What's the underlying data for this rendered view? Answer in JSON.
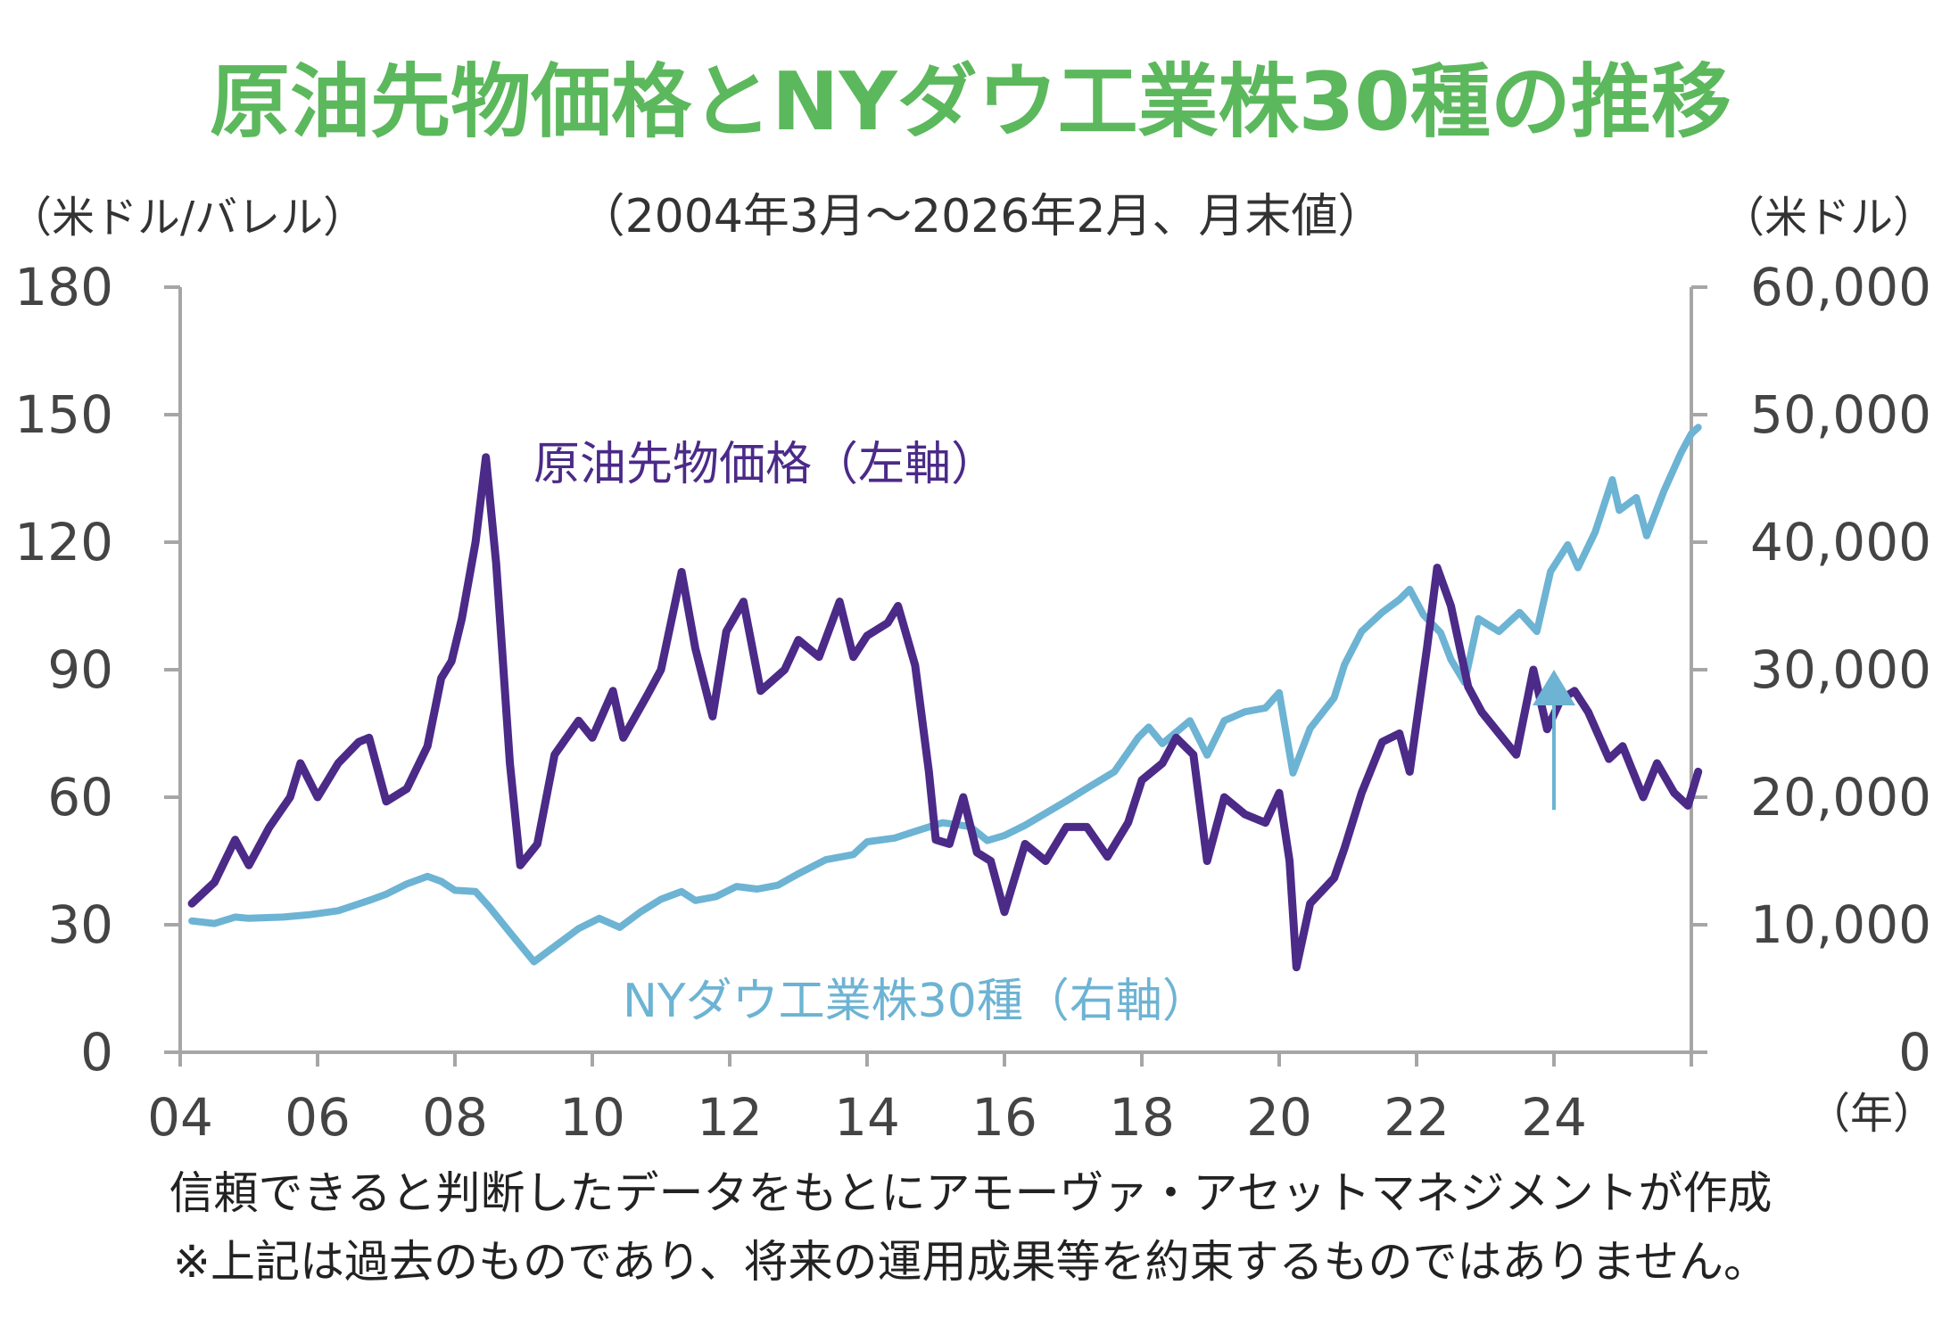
{
  "header": {
    "title": "原油先物価格とNYダウ工業株30種の推移",
    "subtitle": "（2004年3月～2026年2月、月末値）",
    "left_unit": "（米ドル/バレル）",
    "right_unit": "（米ドル）",
    "x_unit": "（年）"
  },
  "footer": {
    "note1": "信頼できると判断したデータをもとにアモーヴァ・アセットマネジメントが作成",
    "note2": "※上記は過去のものであり、将来の運用成果等を約束するものではありません。"
  },
  "colors": {
    "title": "#5cb85c",
    "oil": "#4b2a88",
    "dow": "#6db3d3",
    "axis": "#a6a6a6"
  },
  "chart_data": {
    "type": "line",
    "x_ticks": [
      "04",
      "06",
      "08",
      "10",
      "12",
      "14",
      "16",
      "18",
      "20",
      "22",
      "24"
    ],
    "xlim": [
      2004,
      2026
    ],
    "y_left": {
      "ticks": [
        "0",
        "30",
        "60",
        "90",
        "120",
        "150",
        "180"
      ],
      "lim": [
        0,
        180
      ]
    },
    "y_right": {
      "ticks": [
        "0",
        "10,000",
        "20,000",
        "30,000",
        "40,000",
        "50,000",
        "60,000"
      ],
      "lim": [
        0,
        60000
      ]
    },
    "grid": false,
    "series": [
      {
        "name": "原油先物価格（左軸）",
        "axis": "left",
        "color": "#4b2a88",
        "points": [
          [
            2004.17,
            35
          ],
          [
            2004.5,
            40
          ],
          [
            2004.8,
            50
          ],
          [
            2005.0,
            44
          ],
          [
            2005.3,
            53
          ],
          [
            2005.6,
            60
          ],
          [
            2005.75,
            68
          ],
          [
            2006.0,
            60
          ],
          [
            2006.3,
            68
          ],
          [
            2006.6,
            73
          ],
          [
            2006.75,
            74
          ],
          [
            2007.0,
            59
          ],
          [
            2007.3,
            62
          ],
          [
            2007.6,
            72
          ],
          [
            2007.8,
            88
          ],
          [
            2007.95,
            92
          ],
          [
            2008.1,
            102
          ],
          [
            2008.3,
            120
          ],
          [
            2008.45,
            140
          ],
          [
            2008.6,
            115
          ],
          [
            2008.8,
            68
          ],
          [
            2008.95,
            44
          ],
          [
            2009.2,
            49
          ],
          [
            2009.45,
            70
          ],
          [
            2009.8,
            78
          ],
          [
            2010.0,
            74
          ],
          [
            2010.3,
            85
          ],
          [
            2010.45,
            74
          ],
          [
            2010.8,
            84
          ],
          [
            2011.0,
            90
          ],
          [
            2011.3,
            113
          ],
          [
            2011.5,
            95
          ],
          [
            2011.75,
            79
          ],
          [
            2011.95,
            99
          ],
          [
            2012.2,
            106
          ],
          [
            2012.45,
            85
          ],
          [
            2012.8,
            90
          ],
          [
            2013.0,
            97
          ],
          [
            2013.3,
            93
          ],
          [
            2013.6,
            106
          ],
          [
            2013.8,
            93
          ],
          [
            2014.0,
            98
          ],
          [
            2014.3,
            101
          ],
          [
            2014.45,
            105
          ],
          [
            2014.7,
            91
          ],
          [
            2014.9,
            66
          ],
          [
            2015.0,
            50
          ],
          [
            2015.2,
            49
          ],
          [
            2015.4,
            60
          ],
          [
            2015.6,
            47
          ],
          [
            2015.8,
            45
          ],
          [
            2016.0,
            33
          ],
          [
            2016.3,
            49
          ],
          [
            2016.6,
            45
          ],
          [
            2016.9,
            53
          ],
          [
            2017.2,
            53
          ],
          [
            2017.5,
            46
          ],
          [
            2017.8,
            54
          ],
          [
            2018.0,
            64
          ],
          [
            2018.3,
            68
          ],
          [
            2018.5,
            74
          ],
          [
            2018.75,
            70
          ],
          [
            2018.95,
            45
          ],
          [
            2019.2,
            60
          ],
          [
            2019.5,
            56
          ],
          [
            2019.8,
            54
          ],
          [
            2020.0,
            61
          ],
          [
            2020.15,
            45
          ],
          [
            2020.25,
            20
          ],
          [
            2020.45,
            35
          ],
          [
            2020.8,
            41
          ],
          [
            2020.95,
            48
          ],
          [
            2021.2,
            61
          ],
          [
            2021.5,
            73
          ],
          [
            2021.75,
            75
          ],
          [
            2021.9,
            66
          ],
          [
            2022.15,
            95
          ],
          [
            2022.3,
            114
          ],
          [
            2022.5,
            105
          ],
          [
            2022.75,
            86
          ],
          [
            2022.95,
            80
          ],
          [
            2023.2,
            75
          ],
          [
            2023.45,
            70
          ],
          [
            2023.7,
            90
          ],
          [
            2023.9,
            76
          ],
          [
            2024.1,
            83
          ],
          [
            2024.3,
            85
          ],
          [
            2024.5,
            80
          ],
          [
            2024.8,
            69
          ],
          [
            2025.0,
            72
          ],
          [
            2025.3,
            60
          ],
          [
            2025.5,
            68
          ],
          [
            2025.75,
            61
          ],
          [
            2025.95,
            58
          ],
          [
            2026.1,
            66
          ]
        ]
      },
      {
        "name": "NYダウ工業株30種（右軸）",
        "axis": "right",
        "color": "#6db3d3",
        "points": [
          [
            2004.17,
            10300
          ],
          [
            2004.5,
            10100
          ],
          [
            2004.8,
            10600
          ],
          [
            2005.0,
            10500
          ],
          [
            2005.5,
            10600
          ],
          [
            2005.9,
            10800
          ],
          [
            2006.3,
            11100
          ],
          [
            2006.8,
            12000
          ],
          [
            2007.0,
            12400
          ],
          [
            2007.3,
            13200
          ],
          [
            2007.6,
            13800
          ],
          [
            2007.8,
            13400
          ],
          [
            2008.0,
            12700
          ],
          [
            2008.3,
            12600
          ],
          [
            2008.5,
            11400
          ],
          [
            2008.8,
            9400
          ],
          [
            2009.15,
            7100
          ],
          [
            2009.5,
            8500
          ],
          [
            2009.8,
            9700
          ],
          [
            2010.1,
            10500
          ],
          [
            2010.4,
            9800
          ],
          [
            2010.7,
            11000
          ],
          [
            2011.0,
            12000
          ],
          [
            2011.3,
            12600
          ],
          [
            2011.5,
            11900
          ],
          [
            2011.8,
            12200
          ],
          [
            2012.1,
            13000
          ],
          [
            2012.4,
            12800
          ],
          [
            2012.7,
            13100
          ],
          [
            2013.0,
            14000
          ],
          [
            2013.4,
            15100
          ],
          [
            2013.8,
            15500
          ],
          [
            2014.0,
            16500
          ],
          [
            2014.4,
            16800
          ],
          [
            2014.8,
            17500
          ],
          [
            2015.1,
            18000
          ],
          [
            2015.5,
            17700
          ],
          [
            2015.75,
            16600
          ],
          [
            2016.0,
            17000
          ],
          [
            2016.3,
            17800
          ],
          [
            2016.9,
            19700
          ],
          [
            2017.2,
            20700
          ],
          [
            2017.6,
            22000
          ],
          [
            2017.95,
            24700
          ],
          [
            2018.1,
            25500
          ],
          [
            2018.3,
            24200
          ],
          [
            2018.7,
            26000
          ],
          [
            2018.95,
            23300
          ],
          [
            2019.2,
            26000
          ],
          [
            2019.5,
            26700
          ],
          [
            2019.8,
            27000
          ],
          [
            2020.0,
            28200
          ],
          [
            2020.2,
            21900
          ],
          [
            2020.45,
            25400
          ],
          [
            2020.8,
            27800
          ],
          [
            2020.95,
            30400
          ],
          [
            2021.2,
            33000
          ],
          [
            2021.5,
            34500
          ],
          [
            2021.75,
            35500
          ],
          [
            2021.9,
            36300
          ],
          [
            2022.1,
            34300
          ],
          [
            2022.35,
            32900
          ],
          [
            2022.5,
            30800
          ],
          [
            2022.7,
            29000
          ],
          [
            2022.9,
            34000
          ],
          [
            2023.2,
            33000
          ],
          [
            2023.5,
            34500
          ],
          [
            2023.75,
            33000
          ],
          [
            2023.95,
            37700
          ],
          [
            2024.2,
            39800
          ],
          [
            2024.35,
            38000
          ],
          [
            2024.6,
            40800
          ],
          [
            2024.85,
            44900
          ],
          [
            2024.95,
            42500
          ],
          [
            2025.2,
            43500
          ],
          [
            2025.35,
            40500
          ],
          [
            2025.6,
            44000
          ],
          [
            2025.85,
            47000
          ],
          [
            2026.0,
            48500
          ],
          [
            2026.1,
            49000
          ]
        ]
      }
    ],
    "annotations": [
      {
        "text": "原油先物価格（左軸）",
        "series": 0
      },
      {
        "text": "NYダウ工業株30種（右軸）",
        "series": 1
      },
      {
        "type": "arrow",
        "x": 2024.0,
        "from_left_value": 57,
        "to_left_value": 90,
        "color": "#6db3d3"
      }
    ]
  }
}
